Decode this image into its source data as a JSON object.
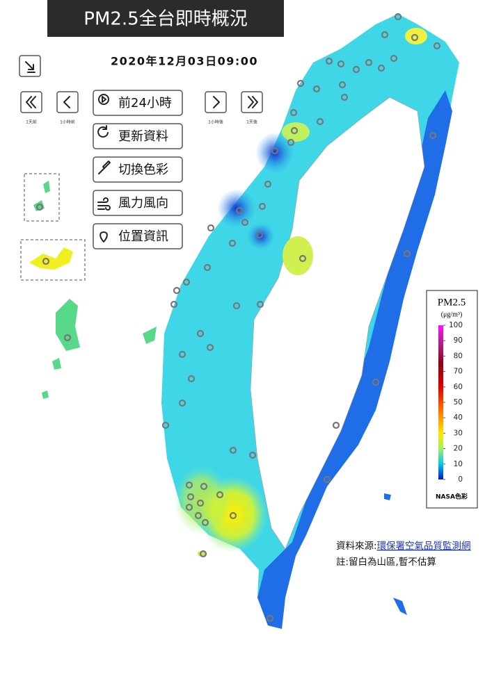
{
  "header": {
    "title": "PM2.5全台即時概況",
    "datetime": "2020年12月03日09:00"
  },
  "nav": [
    {
      "label": "1天前"
    },
    {
      "label": "1小時前"
    },
    {
      "label": "1小時後"
    },
    {
      "label": "1天後"
    }
  ],
  "menu": [
    "前24小時",
    "更新資料",
    "切換色彩",
    "風力風向",
    "位置資訊"
  ],
  "legend": {
    "title": "PM2.5",
    "unit": "(μg/m³)",
    "ticks": [
      100,
      90,
      80,
      70,
      60,
      50,
      40,
      30,
      20,
      10,
      0
    ],
    "palette": "NASA色彩"
  },
  "source": {
    "label": "資料來源:",
    "link": "環保署空氣品質監測網"
  },
  "note": "註:留白為山區,暫不估算"
}
